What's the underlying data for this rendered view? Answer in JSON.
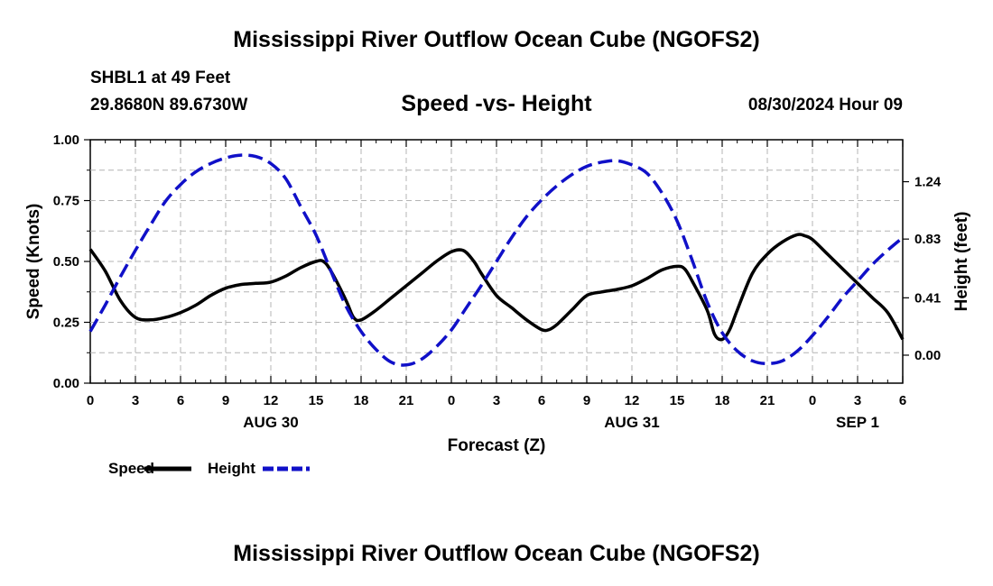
{
  "header": {
    "title": "Mississippi River Outflow Ocean Cube (NGOFS2)",
    "station": "SHBL1 at 49 Feet",
    "coords": "29.8680N  89.6730W",
    "subtitle": "Speed -vs- Height",
    "date": "08/30/2024 Hour 09"
  },
  "footer": {
    "title": "Mississippi River Outflow Ocean Cube (NGOFS2)"
  },
  "legend": {
    "speed_label": "Speed",
    "height_label": "Height"
  },
  "chart_data": {
    "type": "line",
    "title": "Speed -vs- Height",
    "xlabel": "Forecast (Z)",
    "ylabel": "Speed (Knots)",
    "y2label": "Height (feet)",
    "xlim": [
      0,
      54
    ],
    "ylim": [
      0,
      1.0
    ],
    "y2lim": [
      -0.2,
      1.54
    ],
    "x_ticks": [
      0,
      3,
      6,
      9,
      12,
      15,
      18,
      21,
      24,
      27,
      30,
      33,
      36,
      39,
      42,
      45,
      48,
      51,
      54
    ],
    "x_tick_labels": [
      "0",
      "3",
      "6",
      "9",
      "12",
      "15",
      "18",
      "21",
      "0",
      "3",
      "6",
      "9",
      "12",
      "15",
      "18",
      "21",
      "0",
      "3",
      "6"
    ],
    "y_ticks": [
      0.0,
      0.25,
      0.5,
      0.75,
      1.0
    ],
    "y_tick_labels": [
      "0.00",
      "0.25",
      "0.50",
      "0.75",
      "1.00"
    ],
    "y2_ticks": [
      0.0,
      0.41,
      0.83,
      1.24
    ],
    "y2_tick_labels": [
      "0.00",
      "0.41",
      "0.83",
      "1.24"
    ],
    "date_labels": [
      {
        "x": 12,
        "label": "AUG 30"
      },
      {
        "x": 36,
        "label": "AUG 31"
      },
      {
        "x": 51,
        "label": "SEP 1"
      }
    ],
    "grid": true,
    "series": [
      {
        "name": "Speed",
        "axis": "left",
        "color": "#000000",
        "dash": "solid",
        "points": [
          [
            0,
            0.55
          ],
          [
            1,
            0.46
          ],
          [
            2,
            0.34
          ],
          [
            3,
            0.27
          ],
          [
            4,
            0.26
          ],
          [
            5,
            0.27
          ],
          [
            6,
            0.29
          ],
          [
            7,
            0.32
          ],
          [
            8,
            0.36
          ],
          [
            9,
            0.39
          ],
          [
            10,
            0.405
          ],
          [
            11,
            0.41
          ],
          [
            12,
            0.415
          ],
          [
            13,
            0.44
          ],
          [
            14,
            0.475
          ],
          [
            15,
            0.5
          ],
          [
            15.5,
            0.5
          ],
          [
            16,
            0.46
          ],
          [
            17,
            0.34
          ],
          [
            17.5,
            0.27
          ],
          [
            18,
            0.26
          ],
          [
            19,
            0.3
          ],
          [
            20,
            0.35
          ],
          [
            21,
            0.4
          ],
          [
            22,
            0.45
          ],
          [
            23,
            0.5
          ],
          [
            24,
            0.54
          ],
          [
            24.8,
            0.545
          ],
          [
            25.5,
            0.5
          ],
          [
            26,
            0.45
          ],
          [
            27,
            0.36
          ],
          [
            28,
            0.31
          ],
          [
            29,
            0.26
          ],
          [
            30,
            0.22
          ],
          [
            30.5,
            0.22
          ],
          [
            31,
            0.24
          ],
          [
            32,
            0.3
          ],
          [
            33,
            0.36
          ],
          [
            34,
            0.375
          ],
          [
            35,
            0.385
          ],
          [
            36,
            0.4
          ],
          [
            37,
            0.43
          ],
          [
            38,
            0.465
          ],
          [
            39,
            0.48
          ],
          [
            39.5,
            0.47
          ],
          [
            40,
            0.42
          ],
          [
            41,
            0.3
          ],
          [
            41.5,
            0.2
          ],
          [
            42,
            0.18
          ],
          [
            42.5,
            0.22
          ],
          [
            43,
            0.3
          ],
          [
            44,
            0.45
          ],
          [
            45,
            0.53
          ],
          [
            46,
            0.58
          ],
          [
            47,
            0.61
          ],
          [
            47.5,
            0.605
          ],
          [
            48,
            0.59
          ],
          [
            49,
            0.53
          ],
          [
            50,
            0.47
          ],
          [
            51,
            0.41
          ],
          [
            52,
            0.35
          ],
          [
            53,
            0.29
          ],
          [
            54,
            0.18
          ]
        ]
      },
      {
        "name": "Height",
        "axis": "right",
        "color": "#1010c8",
        "dash": "dashed",
        "points": [
          [
            0,
            0.17
          ],
          [
            1,
            0.36
          ],
          [
            2,
            0.56
          ],
          [
            3,
            0.75
          ],
          [
            4,
            0.93
          ],
          [
            5,
            1.1
          ],
          [
            6,
            1.22
          ],
          [
            7,
            1.31
          ],
          [
            8,
            1.37
          ],
          [
            9,
            1.41
          ],
          [
            10,
            1.43
          ],
          [
            11,
            1.42
          ],
          [
            12,
            1.37
          ],
          [
            13,
            1.26
          ],
          [
            14,
            1.06
          ],
          [
            15,
            0.86
          ],
          [
            16,
            0.6
          ],
          [
            17,
            0.35
          ],
          [
            18,
            0.17
          ],
          [
            19,
            0.04
          ],
          [
            20,
            -0.05
          ],
          [
            21,
            -0.07
          ],
          [
            22,
            -0.03
          ],
          [
            23,
            0.06
          ],
          [
            24,
            0.18
          ],
          [
            25,
            0.34
          ],
          [
            26,
            0.5
          ],
          [
            27,
            0.67
          ],
          [
            28,
            0.84
          ],
          [
            29,
            0.99
          ],
          [
            30,
            1.11
          ],
          [
            31,
            1.21
          ],
          [
            32,
            1.29
          ],
          [
            33,
            1.35
          ],
          [
            34,
            1.38
          ],
          [
            35,
            1.39
          ],
          [
            36,
            1.36
          ],
          [
            37,
            1.3
          ],
          [
            38,
            1.16
          ],
          [
            39,
            0.96
          ],
          [
            40,
            0.68
          ],
          [
            41,
            0.38
          ],
          [
            42,
            0.16
          ],
          [
            43,
            0.03
          ],
          [
            44,
            -0.04
          ],
          [
            45,
            -0.06
          ],
          [
            46,
            -0.04
          ],
          [
            47,
            0.03
          ],
          [
            48,
            0.14
          ],
          [
            49,
            0.27
          ],
          [
            50,
            0.41
          ],
          [
            51,
            0.53
          ],
          [
            52,
            0.65
          ],
          [
            53,
            0.75
          ],
          [
            54,
            0.84
          ]
        ]
      }
    ]
  }
}
